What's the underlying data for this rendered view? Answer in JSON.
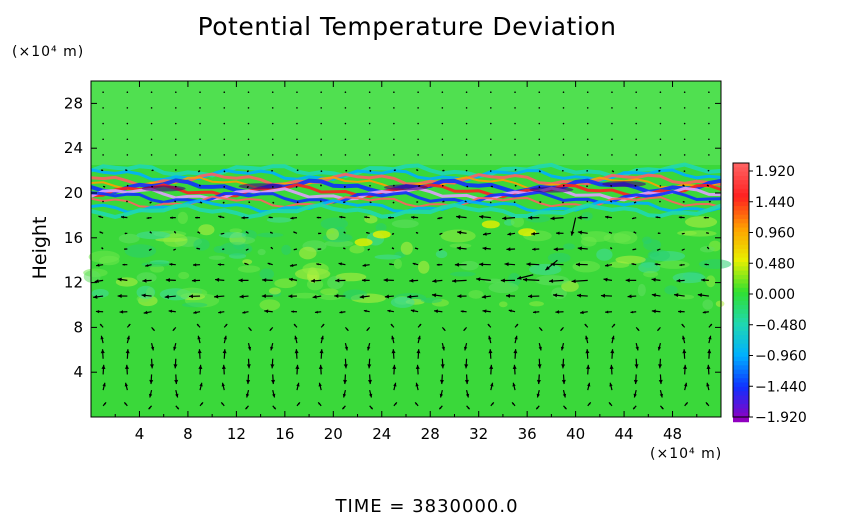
{
  "chart_data": {
    "type": "heatmap",
    "title": "Potential Temperature Deviation",
    "ylabel": "Height",
    "xunit": "(×10⁴ m)",
    "yunit": "(×10⁴ m)",
    "footer": "TIME = 3830000.0",
    "xlim": [
      0,
      52
    ],
    "ylim": [
      0,
      30
    ],
    "xticks": [
      "4",
      "8",
      "12",
      "16",
      "20",
      "24",
      "28",
      "32",
      "36",
      "40",
      "44",
      "48"
    ],
    "xtick_values": [
      4,
      8,
      12,
      16,
      20,
      24,
      28,
      32,
      36,
      40,
      44,
      48
    ],
    "yticks": [
      "4",
      "8",
      "12",
      "16",
      "20",
      "24",
      "28"
    ],
    "ytick_values": [
      4,
      8,
      12,
      16,
      20,
      24,
      28
    ],
    "colorbar": {
      "labels": [
        "1.920",
        "1.440",
        "0.960",
        "0.480",
        "0.000",
        "−0.480",
        "−0.960",
        "−1.440",
        "−1.920"
      ],
      "values": [
        1.92,
        1.44,
        0.96,
        0.48,
        0.0,
        -0.48,
        -0.96,
        -1.44,
        -1.92
      ],
      "colors": [
        "#ff6060",
        "#ff2020",
        "#ffa000",
        "#e8f000",
        "#30e030",
        "#20d8b0",
        "#00b0ff",
        "#1030ff",
        "#9000c0"
      ]
    },
    "features": {
      "background_color": "#3ad83a",
      "upper_region_color": "#50e050",
      "band_center_height": 20.5,
      "band_half_width": 1.2,
      "mid_noise_range": [
        10,
        18
      ]
    }
  }
}
